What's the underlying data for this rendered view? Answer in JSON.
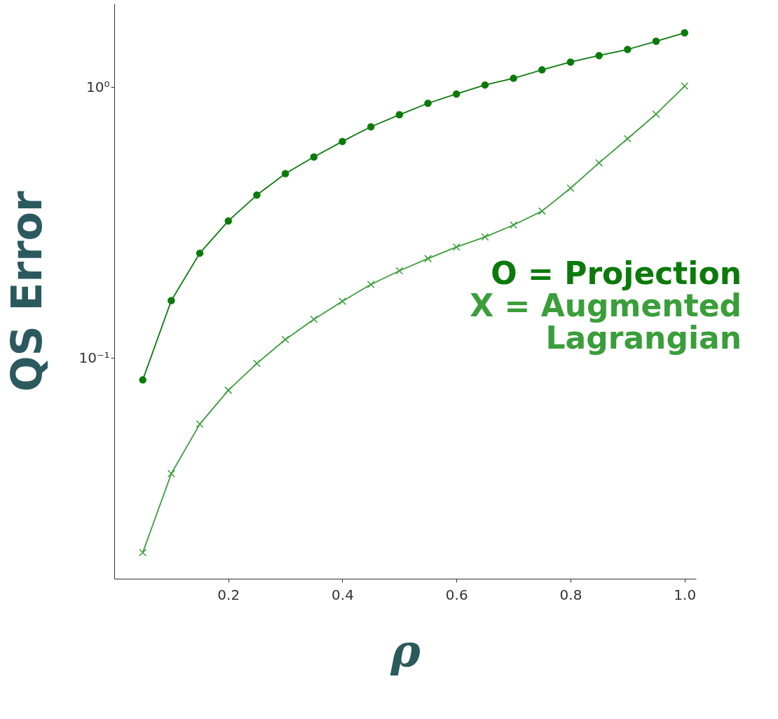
{
  "chart_data": {
    "type": "line",
    "xlabel": "ρ",
    "ylabel": "QS Error",
    "log": "y",
    "x": [
      0.05,
      0.1,
      0.15,
      0.2,
      0.25,
      0.3,
      0.35,
      0.4,
      0.45,
      0.5,
      0.55,
      0.6,
      0.65,
      0.7,
      0.75,
      0.8,
      0.85,
      0.9,
      0.95,
      1.0
    ],
    "series": [
      {
        "name": "O = Projection",
        "color": "#0b7a0b",
        "marker": "circle",
        "values": [
          0.083,
          0.163,
          0.244,
          0.321,
          0.4,
          0.48,
          0.553,
          0.631,
          0.715,
          0.792,
          0.873,
          0.945,
          1.02,
          1.08,
          1.16,
          1.24,
          1.31,
          1.38,
          1.48,
          1.59
        ]
      },
      {
        "name": "X = Augmented Lagrangian",
        "color": "#3a9e3a",
        "marker": "cross",
        "values": [
          0.0191,
          0.0374,
          0.057,
          0.076,
          0.0955,
          0.117,
          0.139,
          0.162,
          0.187,
          0.21,
          0.233,
          0.257,
          0.28,
          0.31,
          0.349,
          0.424,
          0.526,
          0.646,
          0.796,
          1.01
        ]
      }
    ],
    "xlim": [
      0.0,
      1.02
    ],
    "xticks": [
      0.2,
      0.4,
      0.6,
      0.8,
      {
        "value": 1,
        "label": "1.0"
      }
    ],
    "ylim": [
      0.0153,
      2.04
    ],
    "yticks": [
      {
        "value": 1,
        "label": "10⁰"
      },
      {
        "value": 0.1,
        "label": "10⁻¹"
      }
    ],
    "grid": false,
    "legend": "right"
  }
}
